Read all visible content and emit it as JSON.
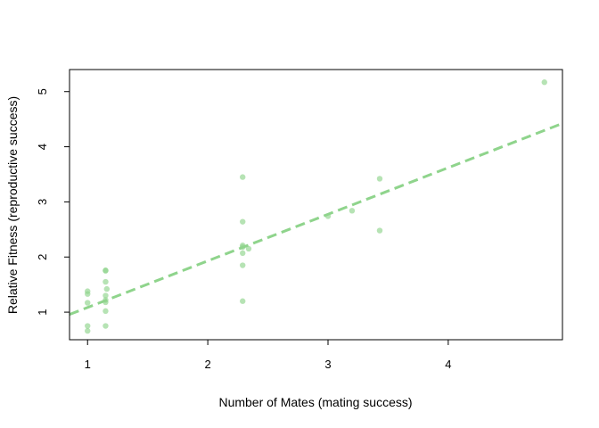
{
  "colors": {
    "points": "#8fd48c",
    "trend": "#8fd48c",
    "axis": "#000000",
    "background": "#ffffff"
  },
  "chart_data": {
    "type": "scatter",
    "title": "",
    "xlabel": "Number of Mates (mating success)",
    "ylabel": "Relative Fitness (reproductive success)",
    "xlim": [
      0.85,
      4.95
    ],
    "ylim": [
      0.5,
      5.4
    ],
    "x_ticks": [
      1,
      2,
      3,
      4
    ],
    "x_tick_labels": [
      "1",
      "2",
      "3",
      "4"
    ],
    "y_ticks": [
      1,
      2,
      3,
      4,
      5
    ],
    "y_tick_labels": [
      "1",
      "2",
      "3",
      "4",
      "5"
    ],
    "grid": false,
    "legend": "none",
    "series": [
      {
        "points": [
          {
            "x": 1.0,
            "y": 1.38
          },
          {
            "x": 1.0,
            "y": 1.33
          },
          {
            "x": 1.0,
            "y": 1.17
          },
          {
            "x": 1.0,
            "y": 0.75
          },
          {
            "x": 1.0,
            "y": 0.66
          },
          {
            "x": 1.15,
            "y": 1.76
          },
          {
            "x": 1.15,
            "y": 1.75
          },
          {
            "x": 1.15,
            "y": 1.55
          },
          {
            "x": 1.16,
            "y": 1.42
          },
          {
            "x": 1.15,
            "y": 1.3
          },
          {
            "x": 1.15,
            "y": 1.22
          },
          {
            "x": 1.15,
            "y": 1.18
          },
          {
            "x": 1.15,
            "y": 1.02
          },
          {
            "x": 1.15,
            "y": 0.75
          },
          {
            "x": 2.29,
            "y": 3.45
          },
          {
            "x": 2.29,
            "y": 2.64
          },
          {
            "x": 2.29,
            "y": 2.21
          },
          {
            "x": 2.29,
            "y": 2.18
          },
          {
            "x": 2.29,
            "y": 2.07
          },
          {
            "x": 2.29,
            "y": 1.85
          },
          {
            "x": 2.29,
            "y": 1.2
          },
          {
            "x": 2.34,
            "y": 2.15
          },
          {
            "x": 3.0,
            "y": 2.74
          },
          {
            "x": 3.2,
            "y": 2.84
          },
          {
            "x": 3.43,
            "y": 3.42
          },
          {
            "x": 3.43,
            "y": 2.48
          },
          {
            "x": 4.8,
            "y": 5.17
          }
        ]
      }
    ],
    "trend_line": {
      "style": "dashed",
      "intercept": 0.24,
      "slope": 0.845
    }
  }
}
